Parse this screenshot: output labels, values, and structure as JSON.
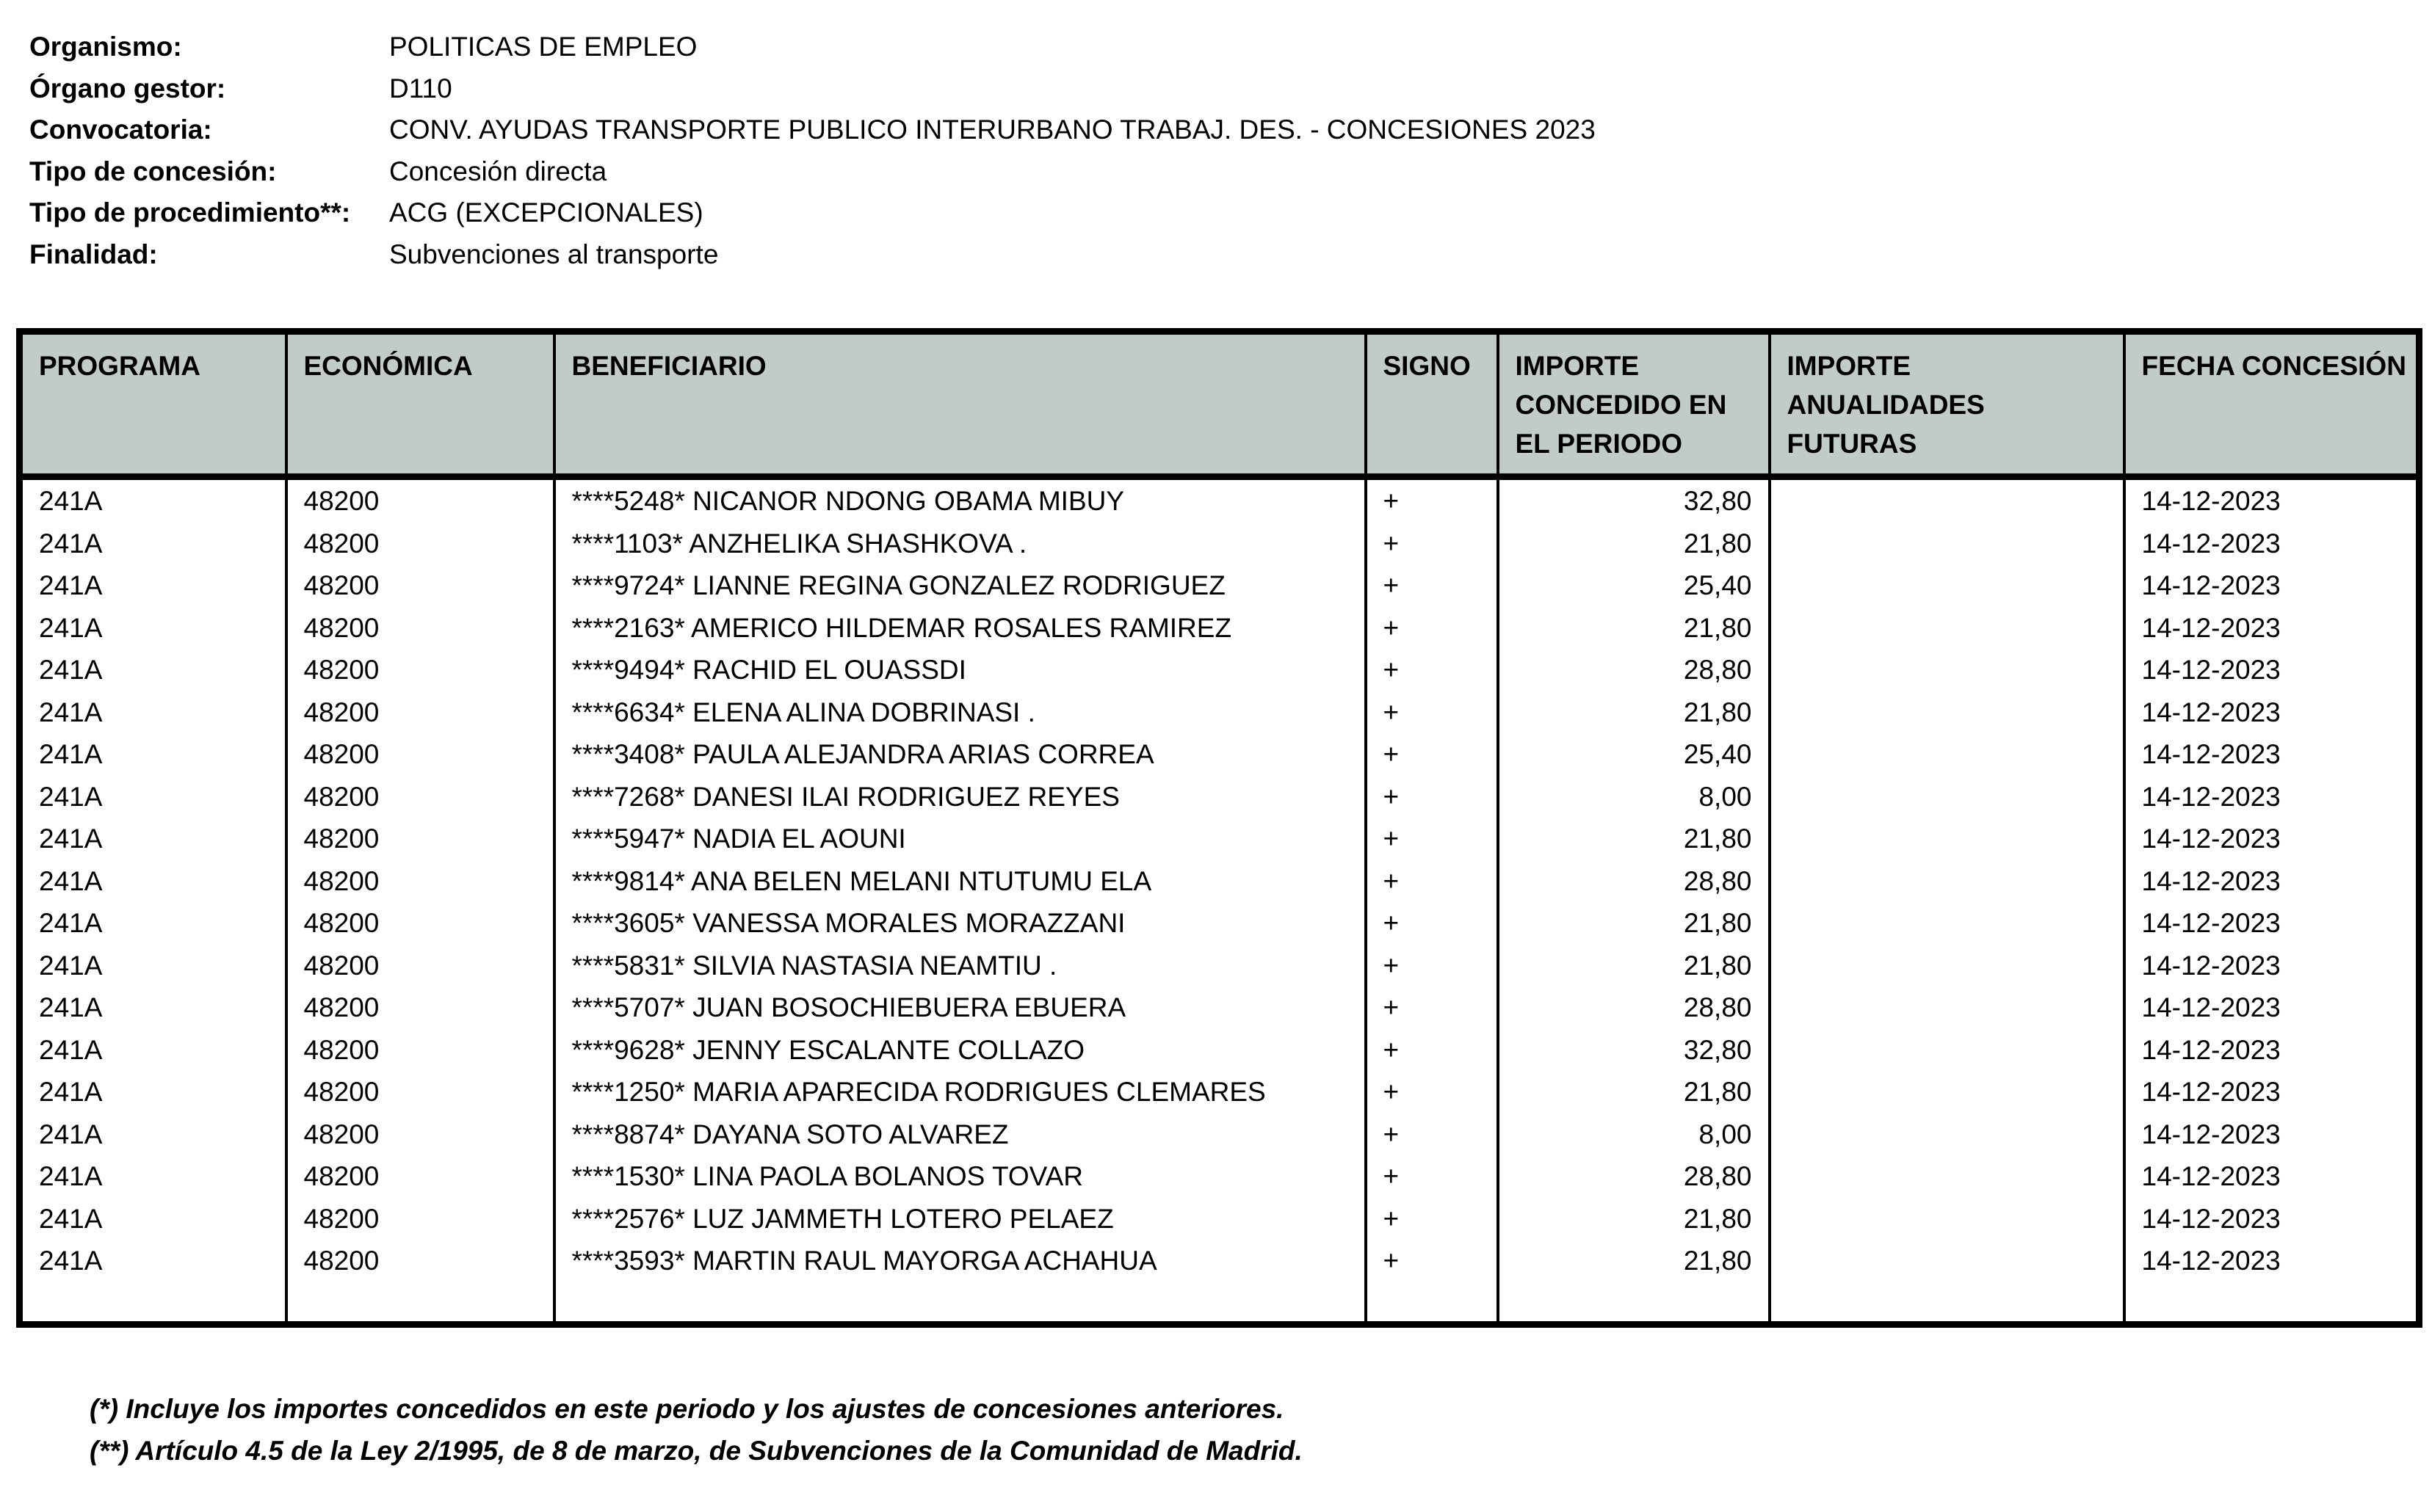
{
  "meta_fields": [
    {
      "label": "Organismo:",
      "value": "POLITICAS DE EMPLEO"
    },
    {
      "label": "Órgano gestor:",
      "value": "D110"
    },
    {
      "label": "Convocatoria:",
      "value": "CONV. AYUDAS TRANSPORTE PUBLICO INTERURBANO TRABAJ. DES. - CONCESIONES 2023"
    },
    {
      "label": "Tipo de concesión:",
      "value": "Concesión directa"
    },
    {
      "label": "Tipo de procedimiento**:",
      "value": "ACG (EXCEPCIONALES)"
    },
    {
      "label": "Finalidad:",
      "value": "Subvenciones al transporte"
    }
  ],
  "table": {
    "columns": [
      "PROGRAMA",
      "ECONÓMICA",
      "BENEFICIARIO",
      "SIGNO",
      "IMPORTE CONCEDIDO EN EL PERIODO",
      "IMPORTE ANUALIDADES FUTURAS",
      "FECHA CONCESIÓN"
    ],
    "row_keys": [
      "programa",
      "economica",
      "beneficiario",
      "signo",
      "importe_periodo",
      "importe_anualidades",
      "fecha"
    ],
    "rows": [
      {
        "programa": "241A",
        "economica": "48200",
        "beneficiario": "****5248* NICANOR NDONG OBAMA MIBUY",
        "signo": "+",
        "importe_periodo": "32,80",
        "importe_anualidades": "",
        "fecha": "14-12-2023"
      },
      {
        "programa": "241A",
        "economica": "48200",
        "beneficiario": "****1103* ANZHELIKA SHASHKOVA .",
        "signo": "+",
        "importe_periodo": "21,80",
        "importe_anualidades": "",
        "fecha": "14-12-2023"
      },
      {
        "programa": "241A",
        "economica": "48200",
        "beneficiario": "****9724* LIANNE REGINA GONZALEZ RODRIGUEZ",
        "signo": "+",
        "importe_periodo": "25,40",
        "importe_anualidades": "",
        "fecha": "14-12-2023"
      },
      {
        "programa": "241A",
        "economica": "48200",
        "beneficiario": "****2163* AMERICO HILDEMAR ROSALES RAMIREZ",
        "signo": "+",
        "importe_periodo": "21,80",
        "importe_anualidades": "",
        "fecha": "14-12-2023"
      },
      {
        "programa": "241A",
        "economica": "48200",
        "beneficiario": "****9494* RACHID EL OUASSDI",
        "signo": "+",
        "importe_periodo": "28,80",
        "importe_anualidades": "",
        "fecha": "14-12-2023"
      },
      {
        "programa": "241A",
        "economica": "48200",
        "beneficiario": "****6634* ELENA ALINA DOBRINASI .",
        "signo": "+",
        "importe_periodo": "21,80",
        "importe_anualidades": "",
        "fecha": "14-12-2023"
      },
      {
        "programa": "241A",
        "economica": "48200",
        "beneficiario": "****3408* PAULA ALEJANDRA ARIAS CORREA",
        "signo": "+",
        "importe_periodo": "25,40",
        "importe_anualidades": "",
        "fecha": "14-12-2023"
      },
      {
        "programa": "241A",
        "economica": "48200",
        "beneficiario": "****7268* DANESI ILAI RODRIGUEZ REYES",
        "signo": "+",
        "importe_periodo": "8,00",
        "importe_anualidades": "",
        "fecha": "14-12-2023"
      },
      {
        "programa": "241A",
        "economica": "48200",
        "beneficiario": "****5947* NADIA EL AOUNI",
        "signo": "+",
        "importe_periodo": "21,80",
        "importe_anualidades": "",
        "fecha": "14-12-2023"
      },
      {
        "programa": "241A",
        "economica": "48200",
        "beneficiario": "****9814* ANA BELEN MELANI NTUTUMU ELA",
        "signo": "+",
        "importe_periodo": "28,80",
        "importe_anualidades": "",
        "fecha": "14-12-2023"
      },
      {
        "programa": "241A",
        "economica": "48200",
        "beneficiario": "****3605* VANESSA MORALES MORAZZANI",
        "signo": "+",
        "importe_periodo": "21,80",
        "importe_anualidades": "",
        "fecha": "14-12-2023"
      },
      {
        "programa": "241A",
        "economica": "48200",
        "beneficiario": "****5831* SILVIA NASTASIA NEAMTIU .",
        "signo": "+",
        "importe_periodo": "21,80",
        "importe_anualidades": "",
        "fecha": "14-12-2023"
      },
      {
        "programa": "241A",
        "economica": "48200",
        "beneficiario": "****5707* JUAN BOSOCHIEBUERA EBUERA",
        "signo": "+",
        "importe_periodo": "28,80",
        "importe_anualidades": "",
        "fecha": "14-12-2023"
      },
      {
        "programa": "241A",
        "economica": "48200",
        "beneficiario": "****9628* JENNY ESCALANTE COLLAZO",
        "signo": "+",
        "importe_periodo": "32,80",
        "importe_anualidades": "",
        "fecha": "14-12-2023"
      },
      {
        "programa": "241A",
        "economica": "48200",
        "beneficiario": "****1250* MARIA APARECIDA RODRIGUES CLEMARES",
        "signo": "+",
        "importe_periodo": "21,80",
        "importe_anualidades": "",
        "fecha": "14-12-2023"
      },
      {
        "programa": "241A",
        "economica": "48200",
        "beneficiario": "****8874* DAYANA SOTO ALVAREZ",
        "signo": "+",
        "importe_periodo": "8,00",
        "importe_anualidades": "",
        "fecha": "14-12-2023"
      },
      {
        "programa": "241A",
        "economica": "48200",
        "beneficiario": "****1530* LINA PAOLA BOLANOS TOVAR",
        "signo": "+",
        "importe_periodo": "28,80",
        "importe_anualidades": "",
        "fecha": "14-12-2023"
      },
      {
        "programa": "241A",
        "economica": "48200",
        "beneficiario": "****2576* LUZ JAMMETH LOTERO PELAEZ",
        "signo": "+",
        "importe_periodo": "21,80",
        "importe_anualidades": "",
        "fecha": "14-12-2023"
      },
      {
        "programa": "241A",
        "economica": "48200",
        "beneficiario": "****3593* MARTIN RAUL MAYORGA ACHAHUA",
        "signo": "+",
        "importe_periodo": "21,80",
        "importe_anualidades": "",
        "fecha": "14-12-2023"
      }
    ]
  },
  "footnotes": [
    "(*) Incluye los importes concedidos en este periodo y los ajustes de concesiones anteriores.",
    "(**) Artículo 4.5 de la Ley 2/1995, de 8 de marzo, de Subvenciones de la Comunidad de Madrid."
  ],
  "colors": {
    "header_bg": "#c1cbc8",
    "border": "#000000"
  }
}
